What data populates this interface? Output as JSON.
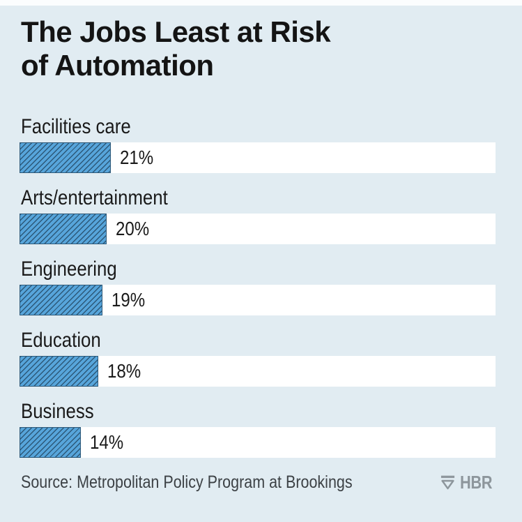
{
  "header": {
    "title_lines": [
      "The Jobs Least at Risk",
      "of Automation"
    ]
  },
  "chart_data": {
    "type": "bar",
    "orientation": "horizontal",
    "title": "The Jobs Least at Risk of Automation",
    "categories": [
      "Facilities care",
      "Arts/entertainment",
      "Engineering",
      "Education",
      "Business"
    ],
    "values": [
      21,
      20,
      19,
      18,
      14
    ],
    "value_labels": [
      "21%",
      "20%",
      "19%",
      "18%",
      "14%"
    ],
    "unit": "percent",
    "xlim": [
      0,
      100
    ],
    "grid": false,
    "legend": false,
    "bar_style": "diagonal-hatch",
    "value_label_position": "right-of-bar"
  },
  "footer": {
    "source": "Source: Metropolitan Policy Program at Brookings",
    "logo_text": "HBR",
    "logo_icon": "hbr-shield-icon"
  },
  "colors": {
    "background": "#e1ecf2",
    "top_strip": "#fbfdfe",
    "track": "#ffffff",
    "bar_fill": "#57a5db",
    "bar_hatch": "#2c5878",
    "title_text": "#141414",
    "label_text": "#1a1a1a",
    "source_text": "#3c4145",
    "logo_color": "#8d969c"
  }
}
